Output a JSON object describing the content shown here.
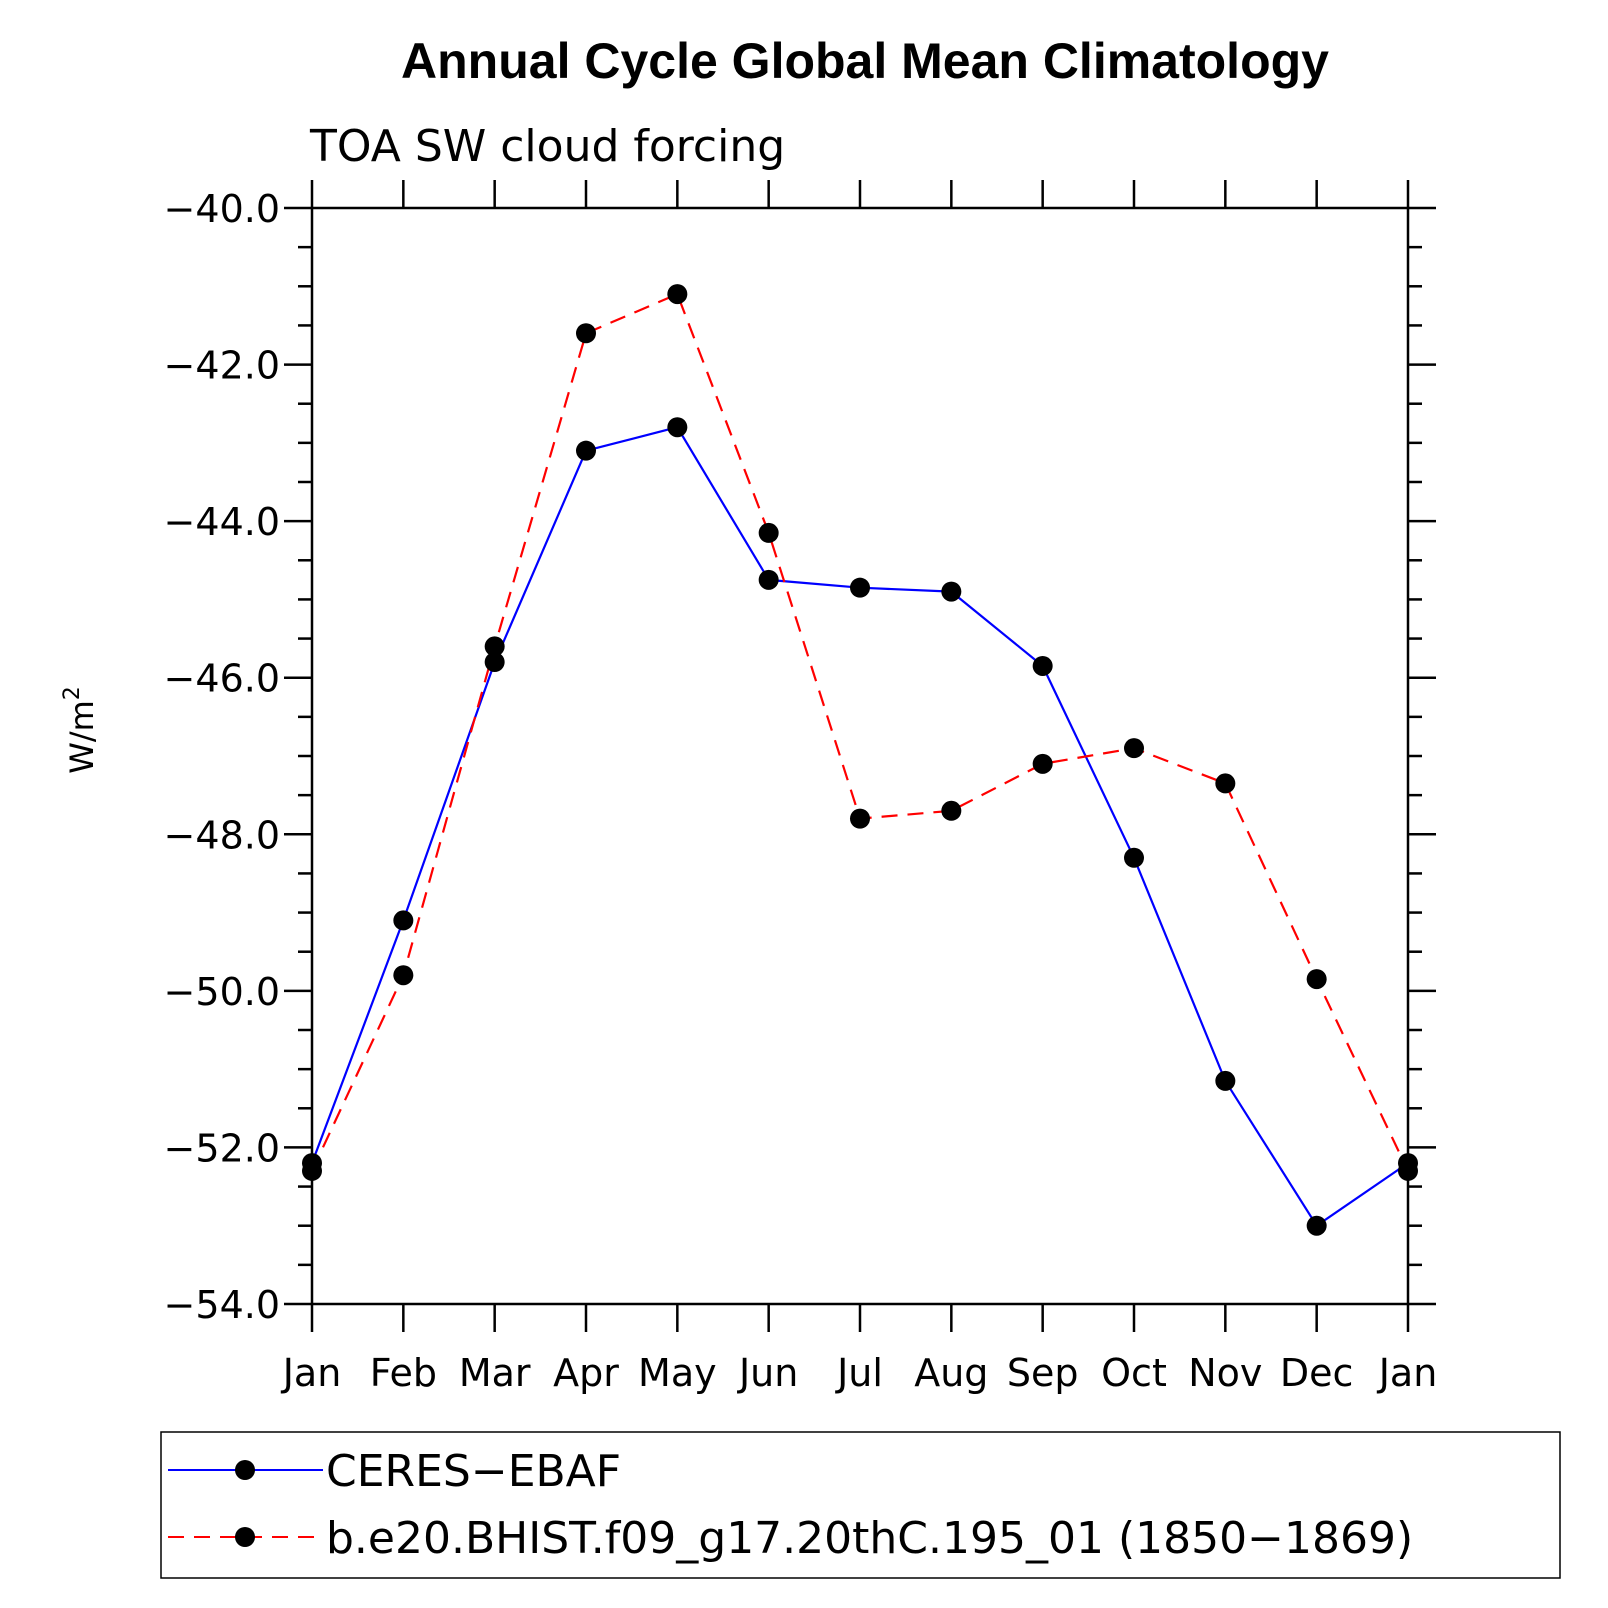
{
  "chart_data": {
    "type": "line",
    "title": "Annual Cycle Global Mean Climatology",
    "subtitle": "TOA SW cloud forcing",
    "ylabel": "W/m",
    "ylabel_sup": "2",
    "xlabel": "",
    "categories": [
      "Jan",
      "Feb",
      "Mar",
      "Apr",
      "May",
      "Jun",
      "Jul",
      "Aug",
      "Sep",
      "Oct",
      "Nov",
      "Dec",
      "Jan"
    ],
    "ylim": [
      -54.0,
      -40.0
    ],
    "yticks": [
      -40.0,
      -42.0,
      -44.0,
      -46.0,
      -48.0,
      -50.0,
      -52.0,
      -54.0
    ],
    "ytick_labels": [
      "−40.0",
      "−42.0",
      "−44.0",
      "−46.0",
      "−48.0",
      "−50.0",
      "−52.0",
      "−54.0"
    ],
    "grid": false,
    "legend_position": "bottom",
    "series": [
      {
        "name": "CERES−EBAF",
        "color": "#0000ff",
        "style": "solid",
        "marker": "filled-circle",
        "values": [
          -52.2,
          -49.1,
          -45.8,
          -43.1,
          -42.8,
          -44.75,
          -44.85,
          -44.9,
          -45.85,
          -48.3,
          -51.15,
          -53.0,
          -52.2
        ]
      },
      {
        "name": "b.e20.BHIST.f09_g17.20thC.195_01 (1850−1869)",
        "color": "#ff0000",
        "style": "dashed",
        "marker": "filled-circle",
        "values": [
          -52.3,
          -49.8,
          -45.6,
          -41.6,
          -41.1,
          -44.15,
          -47.8,
          -47.7,
          -47.1,
          -46.9,
          -47.35,
          -49.85,
          -52.3
        ]
      }
    ]
  }
}
